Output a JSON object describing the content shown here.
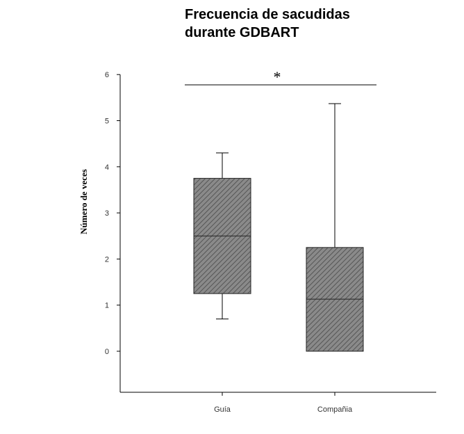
{
  "chart_data": {
    "type": "boxplot",
    "title_line1": "Frecuencia de sacudidas",
    "title_line2": "durante GDBART",
    "xlabel": "",
    "ylabel": "Número de veces",
    "ylim": [
      -0.9,
      6
    ],
    "yticks": [
      0,
      1,
      2,
      3,
      4,
      5,
      6
    ],
    "categories": [
      "Guía",
      "Compañia"
    ],
    "boxes": [
      {
        "category": "Guía",
        "whisker_low": 0.7,
        "q1": 1.25,
        "median": 2.5,
        "q3": 3.75,
        "whisker_high": 4.3
      },
      {
        "category": "Compañia",
        "whisker_low": 0.0,
        "q1": 0.0,
        "median": 1.13,
        "q3": 2.25,
        "whisker_high": 5.37
      }
    ],
    "significance": {
      "label": "*",
      "between": [
        "Guía",
        "Compañia"
      ]
    },
    "grid": false,
    "box_fill": "#8a8a8a",
    "box_hatch": "#555555"
  }
}
